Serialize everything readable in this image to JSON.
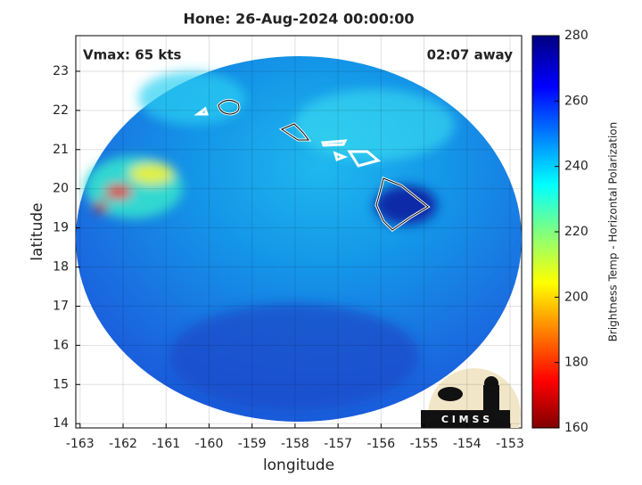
{
  "chart_data": {
    "type": "map",
    "title": "Hone: 26-Aug-2024 00:00:00",
    "annotations": [
      "Vmax: 65 kts",
      "02:07 away"
    ],
    "xlabel": "longitude",
    "ylabel": "latitude",
    "xlim": [
      -163.1,
      -152.73
    ],
    "ylim": [
      13.89,
      23.91
    ],
    "xticks": [
      -163,
      -162,
      -161,
      -160,
      -159,
      -158,
      -157,
      -156,
      -155,
      -154,
      -153
    ],
    "yticks": [
      14,
      15,
      16,
      17,
      18,
      19,
      20,
      21,
      22,
      23
    ],
    "grid": true,
    "colorbar": {
      "label": "Brightness Temp - Horizontal Polarization",
      "lim": [
        160,
        280
      ],
      "ticks": [
        160,
        180,
        200,
        220,
        240,
        260,
        280
      ]
    },
    "logo": "C I M S S"
  }
}
